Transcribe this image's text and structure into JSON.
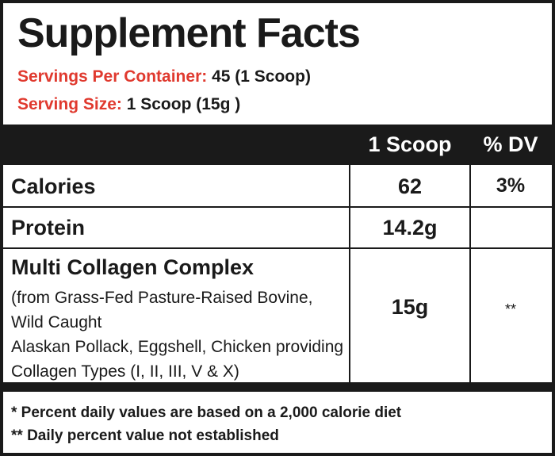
{
  "title": "Supplement Facts",
  "servings_per_container": {
    "label": "Servings Per Container:",
    "value": "45 (1 Scoop)"
  },
  "serving_size": {
    "label": "Serving Size:",
    "value": "1 Scoop (15g )"
  },
  "columns": {
    "amount": "1 Scoop",
    "dv": "% DV"
  },
  "rows": [
    {
      "name": "Calories",
      "amount": "62",
      "dv": "3%"
    },
    {
      "name": "Protein",
      "amount": "14.2g",
      "dv": ""
    },
    {
      "name": "Multi Collagen Complex",
      "details": [
        "(from Grass-Fed Pasture-Raised Bovine,  Wild Caught",
        "Alaskan Pollack, Eggshell, Chicken providing",
        "Collagen Types (I, II, III, V & X)"
      ],
      "amount": "15g",
      "dv": "**"
    }
  ],
  "footnotes": [
    "* Percent daily values are based on a 2,000 calorie diet",
    "** Daily percent value not established"
  ],
  "colors": {
    "accent_red": "#e03a2f",
    "ink": "#1a1a1a",
    "background": "#ffffff"
  }
}
